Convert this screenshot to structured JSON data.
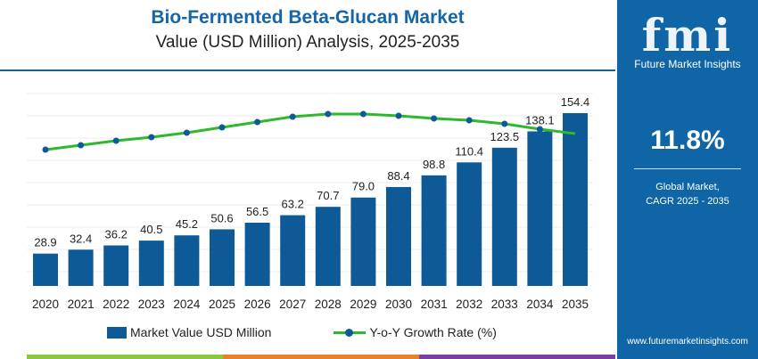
{
  "chart_data": {
    "type": "bar",
    "title": "Bio-Fermented Beta-Glucan Market",
    "subtitle": "Value (USD Million) Analysis, 2025-2035",
    "categories": [
      "2020",
      "2021",
      "2022",
      "2023",
      "2024",
      "2025",
      "2026",
      "2027",
      "2028",
      "2029",
      "2030",
      "2031",
      "2032",
      "2033",
      "2034",
      "2035"
    ],
    "series": [
      {
        "name": "Market Value USD Million",
        "type": "bar",
        "color": "#0e5a96",
        "values": [
          28.9,
          32.4,
          36.2,
          40.5,
          45.2,
          50.6,
          56.5,
          63.2,
          70.7,
          79.0,
          88.4,
          98.8,
          110.4,
          123.5,
          138.1,
          154.4
        ]
      },
      {
        "name": "Y-o-Y Growth Rate (%)",
        "type": "line",
        "color": "#2eb82e",
        "marker_color": "#0e5a96",
        "values": [
          10.0,
          10.25,
          10.5,
          10.7,
          10.95,
          11.25,
          11.55,
          11.85,
          12.0,
          12.0,
          11.9,
          11.75,
          11.65,
          11.45,
          11.15,
          10.9
        ]
      }
    ],
    "ylim": [
      0,
      170
    ],
    "grid": true,
    "legend": "bottom"
  },
  "side": {
    "logo": "fmi",
    "brand": "Future Market Insights",
    "cagr": "11.8%",
    "caption1": "Global Market,",
    "caption2": "CAGR 2025 - 2035",
    "url": "www.futuremarketinsights.com"
  },
  "footer_colors": [
    "#8cc63f",
    "#e8822a",
    "#7b3fa0"
  ]
}
